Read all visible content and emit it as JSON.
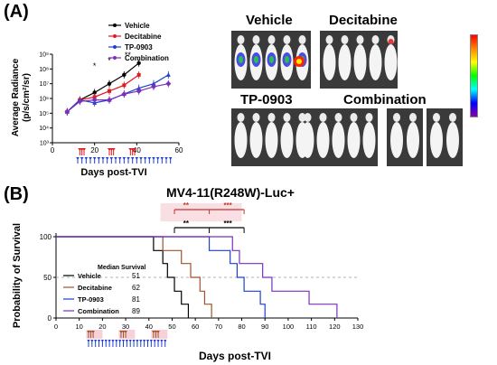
{
  "panels": {
    "a_label": "(A)",
    "b_label": "(B)"
  },
  "panelA": {
    "ylabel_line1": "Average Radiance",
    "ylabel_line2": "(p/s/cm²/sr)",
    "xlabel": "Days post-TVI",
    "legend": [
      "Vehicle",
      "Decitabine",
      "TP-0903",
      "Combination"
    ],
    "significance": [
      "*",
      "*",
      "**"
    ],
    "imaging_groups": [
      "Vehicle",
      "Decitabine",
      "TP-0903",
      "Combination"
    ]
  },
  "panelB": {
    "title": "MV4-11(R248W)-Luc+",
    "ylabel": "Probability of Survival",
    "xlabel": "Days post-TVI",
    "median_header": "Median Survival",
    "legend": [
      {
        "name": "Vehicle",
        "median": "51"
      },
      {
        "name": "Decitabine",
        "median": "62"
      },
      {
        "name": "TP-0903",
        "median": "81"
      },
      {
        "name": "Combination",
        "median": "89"
      }
    ],
    "brackets": [
      "**",
      "***",
      "**",
      "***"
    ]
  },
  "colors": {
    "vehicle": "#000000",
    "decitabine": "#e31a1c",
    "tp0903": "#1f3fd1",
    "combination": "#7b2fbf",
    "km_decitabine": "#a0522d",
    "bracket_red": "#c0392b",
    "bracket_shade": "#f7d0d8"
  },
  "chart_data": [
    {
      "type": "line",
      "ylabel": "Average Radiance (p/s/cm²/sr)",
      "xlabel": "Days post-TVI",
      "xlim": [
        0,
        60
      ],
      "xticks": [
        0,
        20,
        40,
        60
      ],
      "ylim_exp": [
        3,
        9
      ],
      "yticks": [
        "10³",
        "10⁴",
        "10⁵",
        "10⁶",
        "10⁷",
        "10⁸",
        "10⁹"
      ],
      "log_y": true,
      "series": [
        {
          "name": "Vehicle",
          "x": [
            7,
            13,
            20,
            27,
            34,
            41
          ],
          "y_exp": [
            5.1,
            5.9,
            6.4,
            7.0,
            7.6,
            8.4
          ]
        },
        {
          "name": "Decitabine",
          "x": [
            7,
            13,
            20,
            27,
            34,
            41
          ],
          "y_exp": [
            5.1,
            5.9,
            6.1,
            6.5,
            6.9,
            7.6
          ]
        },
        {
          "name": "TP-0903",
          "x": [
            7,
            13,
            20,
            27,
            34,
            41,
            48,
            55
          ],
          "y_exp": [
            5.1,
            5.9,
            5.7,
            5.9,
            6.3,
            6.7,
            7.0,
            7.6
          ]
        },
        {
          "name": "Combination",
          "x": [
            7,
            13,
            20,
            27,
            34,
            41,
            48,
            55
          ],
          "y_exp": [
            5.1,
            5.8,
            5.9,
            5.9,
            6.3,
            6.5,
            6.8,
            7.0
          ]
        }
      ]
    },
    {
      "type": "line",
      "title": "MV4-11(R248W)-Luc+",
      "ylabel": "Probability of Survival",
      "xlabel": "Days post-TVI",
      "xlim": [
        0,
        130
      ],
      "xticks": [
        0,
        10,
        20,
        30,
        40,
        50,
        60,
        70,
        80,
        90,
        100,
        110,
        120,
        130
      ],
      "ylim": [
        0,
        100
      ],
      "yticks": [
        0,
        50,
        100
      ],
      "series": [
        {
          "name": "Vehicle",
          "x": [
            0,
            42,
            42,
            46,
            46,
            48,
            48,
            51,
            51,
            54,
            54,
            57,
            57
          ],
          "y": [
            100,
            100,
            83,
            83,
            67,
            67,
            50,
            50,
            33,
            33,
            17,
            17,
            0
          ]
        },
        {
          "name": "Decitabine",
          "x": [
            0,
            46,
            46,
            54,
            54,
            58,
            58,
            62,
            62,
            64,
            64,
            67,
            67
          ],
          "y": [
            100,
            100,
            83,
            83,
            67,
            67,
            50,
            50,
            33,
            33,
            17,
            17,
            0
          ]
        },
        {
          "name": "TP-0903",
          "x": [
            0,
            66,
            66,
            75,
            75,
            78,
            78,
            81,
            81,
            88,
            88,
            90,
            90
          ],
          "y": [
            100,
            100,
            83,
            83,
            67,
            67,
            50,
            50,
            33,
            33,
            17,
            17,
            0
          ]
        },
        {
          "name": "Combination",
          "x": [
            0,
            76,
            76,
            79,
            79,
            89,
            89,
            93,
            93,
            109,
            109,
            121,
            121
          ],
          "y": [
            100,
            100,
            83,
            83,
            67,
            67,
            50,
            50,
            33,
            33,
            17,
            17,
            0
          ]
        }
      ]
    }
  ]
}
